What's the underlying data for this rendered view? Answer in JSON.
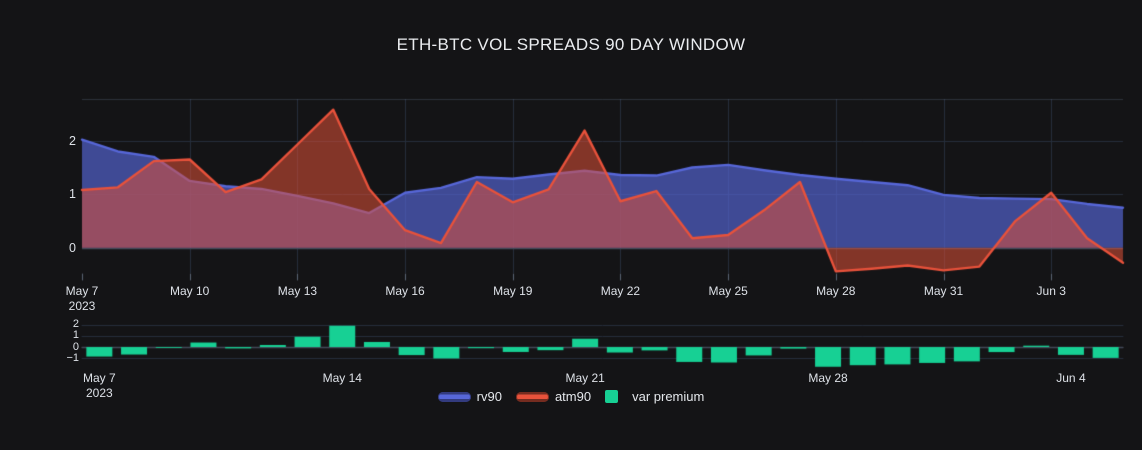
{
  "title": "ETH-BTC VOL SPREADS 90 DAY WINDOW",
  "colors": {
    "background": "#141416",
    "grid": "#262e3c",
    "zero_line": "#434a59",
    "top_border": "rgba(95,108,130,0.35)",
    "tick_mark": "#5a6474",
    "axis_text": "#dde1e7",
    "title_text": "#eaecef",
    "rv90_line": "#5767d8",
    "rv90_fill": "rgba(87,103,216,0.66)",
    "atm90_line": "#e8523b",
    "atm90_fill": "rgba(222,80,56,0.55)",
    "var_premium": "#17d094"
  },
  "legend": {
    "items": [
      {
        "id": "rv90",
        "label": "rv90",
        "type": "area",
        "line": "#5767d8",
        "fill": "#333b7e"
      },
      {
        "id": "atm90",
        "label": "atm90",
        "type": "area",
        "line": "#e8523b",
        "fill": "#752c20"
      },
      {
        "id": "varprem",
        "label": "var premium",
        "type": "square",
        "fill": "#17d094"
      }
    ]
  },
  "chart_data": [
    {
      "type": "area",
      "title": "ETH-BTC VOL SPREADS 90 DAY WINDOW",
      "x": [
        "May 7",
        "May 8",
        "May 9",
        "May 10",
        "May 11",
        "May 12",
        "May 13",
        "May 14",
        "May 15",
        "May 16",
        "May 17",
        "May 18",
        "May 19",
        "May 20",
        "May 21",
        "May 22",
        "May 23",
        "May 24",
        "May 25",
        "May 26",
        "May 27",
        "May 28",
        "May 29",
        "May 30",
        "May 31",
        "Jun 1",
        "Jun 2",
        "Jun 3",
        "Jun 4",
        "Jun 5"
      ],
      "series": [
        {
          "name": "rv90",
          "values": [
            2.02,
            1.8,
            1.7,
            1.25,
            1.15,
            1.1,
            0.97,
            0.83,
            0.65,
            1.03,
            1.12,
            1.32,
            1.29,
            1.37,
            1.44,
            1.36,
            1.35,
            1.5,
            1.55,
            1.45,
            1.36,
            1.29,
            1.23,
            1.17,
            0.99,
            0.93,
            0.92,
            0.91,
            0.82,
            0.75
          ]
        },
        {
          "name": "atm90",
          "values": [
            1.08,
            1.13,
            1.62,
            1.65,
            1.04,
            1.28,
            1.93,
            2.58,
            1.1,
            0.33,
            0.09,
            1.23,
            0.85,
            1.09,
            2.19,
            0.87,
            1.06,
            0.18,
            0.24,
            0.7,
            1.23,
            -0.44,
            -0.39,
            -0.33,
            -0.42,
            -0.35,
            0.5,
            1.03,
            0.18,
            -0.28
          ]
        }
      ],
      "x_ticks": [
        {
          "i": 0,
          "label": "May 7",
          "sub": "2023"
        },
        {
          "i": 3,
          "label": "May 10"
        },
        {
          "i": 6,
          "label": "May 13"
        },
        {
          "i": 9,
          "label": "May 16"
        },
        {
          "i": 12,
          "label": "May 19"
        },
        {
          "i": 15,
          "label": "May 22"
        },
        {
          "i": 18,
          "label": "May 25"
        },
        {
          "i": 21,
          "label": "May 28"
        },
        {
          "i": 24,
          "label": "May 31"
        },
        {
          "i": 27,
          "label": "Jun 3"
        }
      ],
      "y_ticks": [
        0,
        1,
        2
      ],
      "y_range": [
        -0.47,
        2.78
      ],
      "grid": true,
      "legend_position": "bottom"
    },
    {
      "type": "bar",
      "series": [
        {
          "name": "var premium",
          "values": [
            -0.85,
            -0.67,
            -0.08,
            0.4,
            -0.12,
            0.18,
            0.92,
            1.9,
            0.45,
            -0.72,
            -1.02,
            -0.1,
            -0.44,
            -0.28,
            0.74,
            -0.49,
            -0.3,
            -1.33,
            -1.38,
            -0.75,
            -0.14,
            -1.76,
            -1.62,
            -1.55,
            -1.42,
            -1.28,
            -0.45,
            0.12,
            -0.7,
            -0.97
          ]
        }
      ],
      "x": [
        "May 7",
        "May 8",
        "May 9",
        "May 10",
        "May 11",
        "May 12",
        "May 13",
        "May 14",
        "May 15",
        "May 16",
        "May 17",
        "May 18",
        "May 19",
        "May 20",
        "May 21",
        "May 22",
        "May 23",
        "May 24",
        "May 25",
        "May 26",
        "May 27",
        "May 28",
        "May 29",
        "May 30",
        "May 31",
        "Jun 1",
        "Jun 2",
        "Jun 3",
        "Jun 4",
        "Jun 5"
      ],
      "x_ticks": [
        {
          "i": 0,
          "label": "May 7",
          "sub": "2023"
        },
        {
          "i": 7,
          "label": "May 14"
        },
        {
          "i": 14,
          "label": "May 21"
        },
        {
          "i": 21,
          "label": "May 28"
        },
        {
          "i": 28,
          "label": "Jun 4"
        }
      ],
      "y_ticks": [
        2,
        1,
        0,
        -1
      ],
      "y_range": [
        -1.96,
        2.5
      ],
      "grid": true
    }
  ]
}
